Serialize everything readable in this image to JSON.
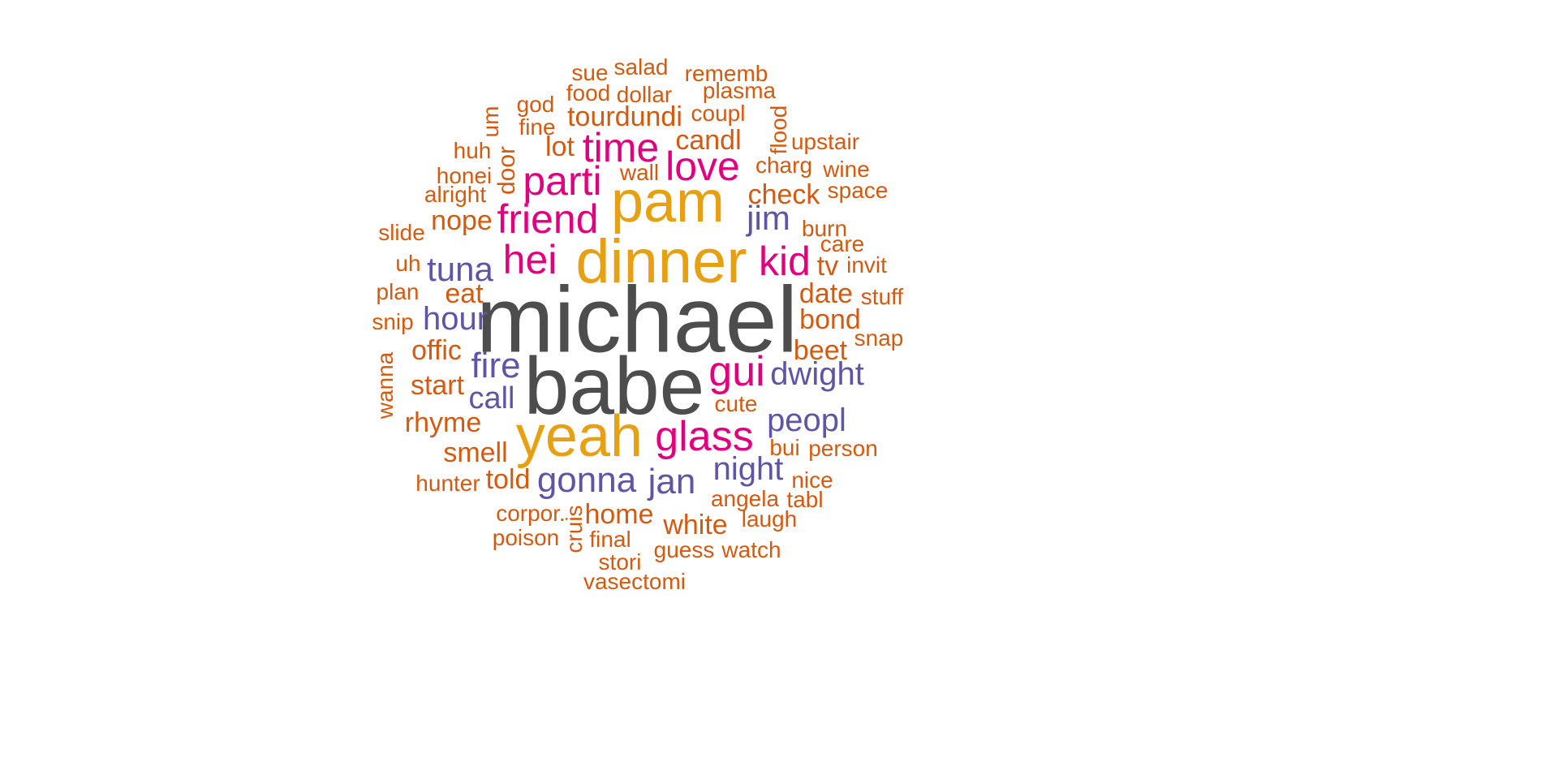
{
  "colors": {
    "tier1": "#4d4d4d",
    "tier2": "#e6a012",
    "tier3": "#e0007f",
    "tier4": "#5e55a5",
    "tier5": "#d45a0f"
  },
  "words": [
    {
      "text": "michael",
      "tier": "tier1"
    },
    {
      "text": "babe",
      "tier": "tier1"
    },
    {
      "text": "dinner",
      "tier": "tier2"
    },
    {
      "text": "pam",
      "tier": "tier2"
    },
    {
      "text": "yeah",
      "tier": "tier2"
    },
    {
      "text": "parti",
      "tier": "tier3"
    },
    {
      "text": "friend",
      "tier": "tier3"
    },
    {
      "text": "time",
      "tier": "tier3"
    },
    {
      "text": "love",
      "tier": "tier3"
    },
    {
      "text": "hei",
      "tier": "tier3"
    },
    {
      "text": "kid",
      "tier": "tier3"
    },
    {
      "text": "gui",
      "tier": "tier3"
    },
    {
      "text": "glass",
      "tier": "tier3"
    },
    {
      "text": "jim",
      "tier": "tier4"
    },
    {
      "text": "tuna",
      "tier": "tier4"
    },
    {
      "text": "hour",
      "tier": "tier4"
    },
    {
      "text": "fire",
      "tier": "tier4"
    },
    {
      "text": "call",
      "tier": "tier4"
    },
    {
      "text": "dwight",
      "tier": "tier4"
    },
    {
      "text": "peopl",
      "tier": "tier4"
    },
    {
      "text": "night",
      "tier": "tier4"
    },
    {
      "text": "gonna",
      "tier": "tier4"
    },
    {
      "text": "jan",
      "tier": "tier4"
    },
    {
      "text": "sue",
      "tier": "tier5"
    },
    {
      "text": "salad",
      "tier": "tier5"
    },
    {
      "text": "rememb",
      "tier": "tier5"
    },
    {
      "text": "food",
      "tier": "tier5"
    },
    {
      "text": "dollar",
      "tier": "tier5"
    },
    {
      "text": "plasma",
      "tier": "tier5"
    },
    {
      "text": "god",
      "tier": "tier5"
    },
    {
      "text": "um",
      "tier": "tier5"
    },
    {
      "text": "tourdundi",
      "tier": "tier5"
    },
    {
      "text": "coupl",
      "tier": "tier5"
    },
    {
      "text": "fine",
      "tier": "tier5"
    },
    {
      "text": "flood",
      "tier": "tier5"
    },
    {
      "text": "candl",
      "tier": "tier5"
    },
    {
      "text": "upstair",
      "tier": "tier5"
    },
    {
      "text": "huh",
      "tier": "tier5"
    },
    {
      "text": "door",
      "tier": "tier5"
    },
    {
      "text": "lot",
      "tier": "tier5"
    },
    {
      "text": "charg",
      "tier": "tier5"
    },
    {
      "text": "wine",
      "tier": "tier5"
    },
    {
      "text": "honei",
      "tier": "tier5"
    },
    {
      "text": "wall",
      "tier": "tier5"
    },
    {
      "text": "space",
      "tier": "tier5"
    },
    {
      "text": "alright",
      "tier": "tier5"
    },
    {
      "text": "check",
      "tier": "tier5"
    },
    {
      "text": "slide",
      "tier": "tier5"
    },
    {
      "text": "nope",
      "tier": "tier5"
    },
    {
      "text": "burn",
      "tier": "tier5"
    },
    {
      "text": "care",
      "tier": "tier5"
    },
    {
      "text": "uh",
      "tier": "tier5"
    },
    {
      "text": "tv",
      "tier": "tier5"
    },
    {
      "text": "invit",
      "tier": "tier5"
    },
    {
      "text": "plan",
      "tier": "tier5"
    },
    {
      "text": "eat",
      "tier": "tier5"
    },
    {
      "text": "date",
      "tier": "tier5"
    },
    {
      "text": "stuff",
      "tier": "tier5"
    },
    {
      "text": "snip",
      "tier": "tier5"
    },
    {
      "text": "bond",
      "tier": "tier5"
    },
    {
      "text": "snap",
      "tier": "tier5"
    },
    {
      "text": "offic",
      "tier": "tier5"
    },
    {
      "text": "beet",
      "tier": "tier5"
    },
    {
      "text": "wanna",
      "tier": "tier5"
    },
    {
      "text": "start",
      "tier": "tier5"
    },
    {
      "text": "cute",
      "tier": "tier5"
    },
    {
      "text": "rhyme",
      "tier": "tier5"
    },
    {
      "text": "smell",
      "tier": "tier5"
    },
    {
      "text": "bui",
      "tier": "tier5"
    },
    {
      "text": "person",
      "tier": "tier5"
    },
    {
      "text": "hunter",
      "tier": "tier5"
    },
    {
      "text": "told",
      "tier": "tier5"
    },
    {
      "text": "nice",
      "tier": "tier5"
    },
    {
      "text": "angela",
      "tier": "tier5"
    },
    {
      "text": "tabl",
      "tier": "tier5"
    },
    {
      "text": "corpor.",
      "tier": "tier5"
    },
    {
      "text": "home",
      "tier": "tier5"
    },
    {
      "text": "laugh",
      "tier": "tier5"
    },
    {
      "text": "cruis",
      "tier": "tier5"
    },
    {
      "text": "white",
      "tier": "tier5"
    },
    {
      "text": "poison",
      "tier": "tier5"
    },
    {
      "text": "final",
      "tier": "tier5"
    },
    {
      "text": "guess",
      "tier": "tier5"
    },
    {
      "text": "watch",
      "tier": "tier5"
    },
    {
      "text": "stori",
      "tier": "tier5"
    },
    {
      "text": "vasectomi",
      "tier": "tier5"
    }
  ]
}
